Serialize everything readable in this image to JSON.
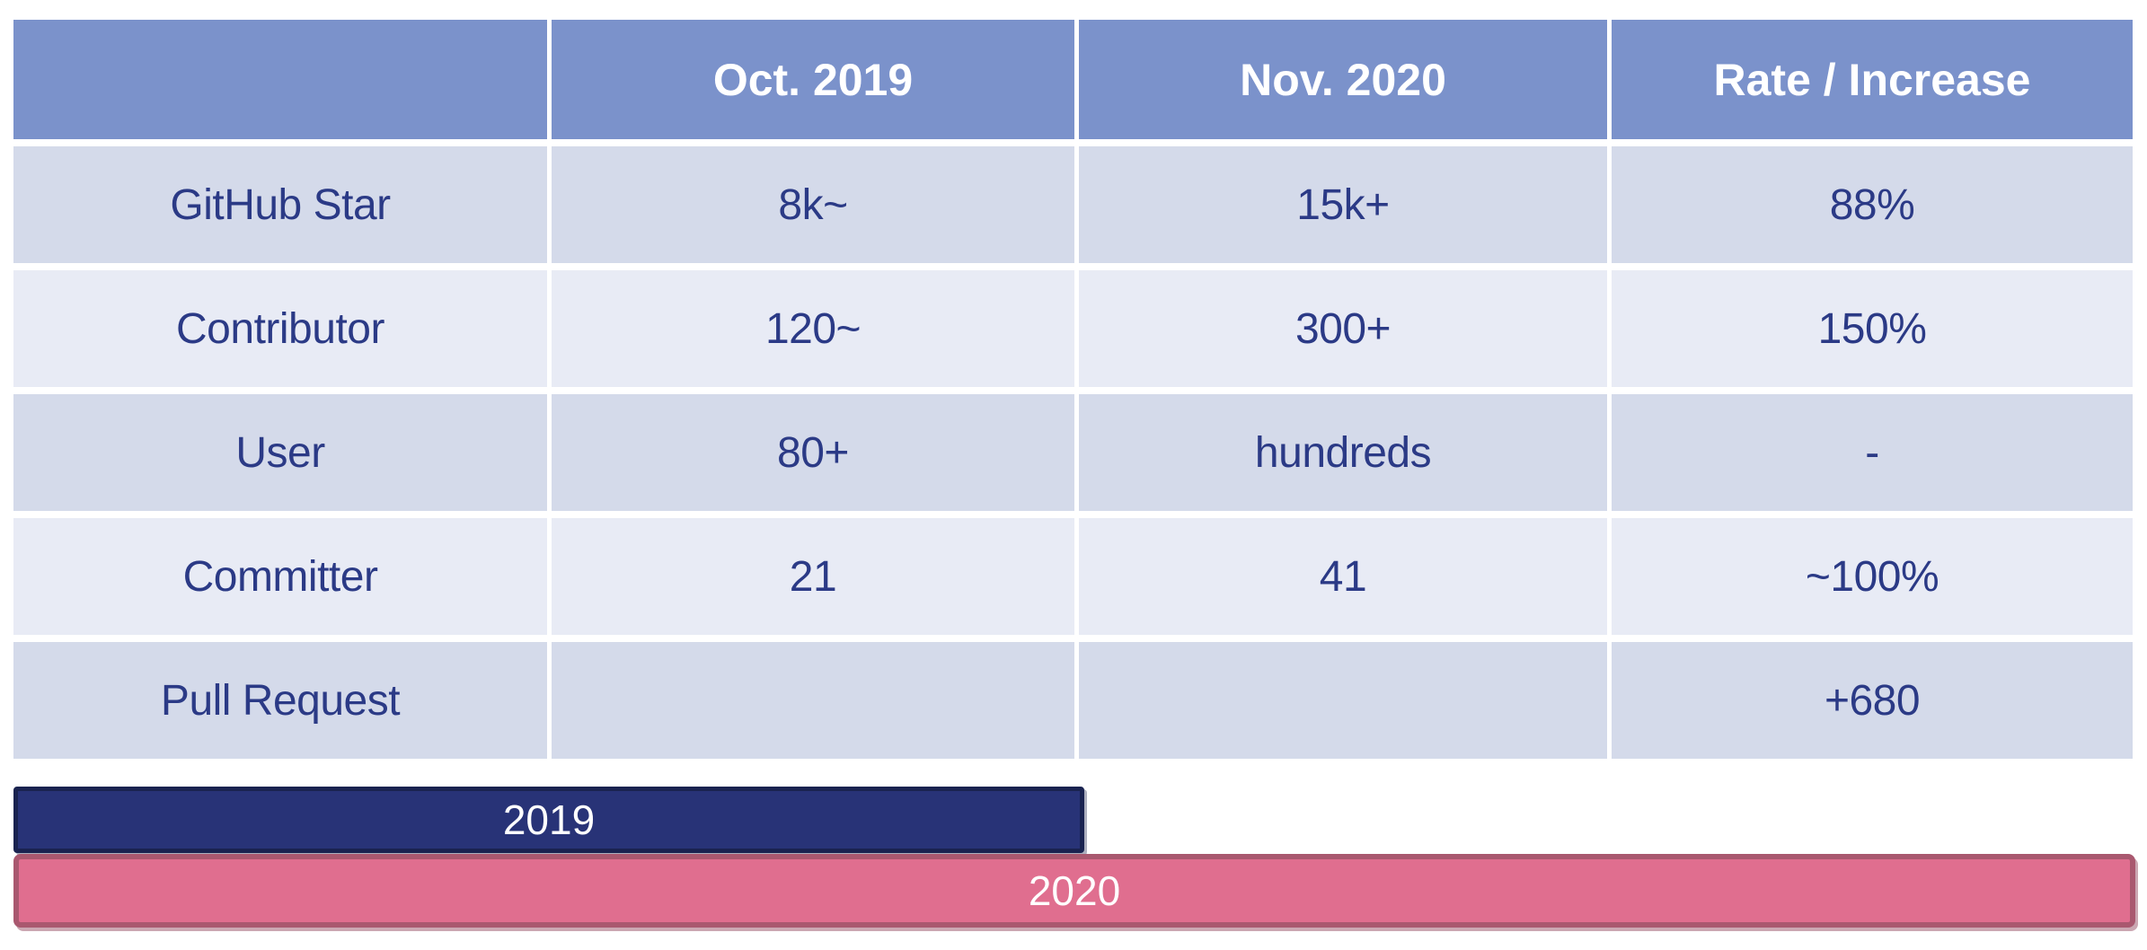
{
  "colors": {
    "header_bg": "#7B92CB",
    "header_text": "#FFFFFF",
    "row_odd_bg": "#D4DAEA",
    "row_even_bg": "#E8EBF5",
    "cell_text": "#2B3A86",
    "bar_2019_fill": "#283377",
    "bar_2019_border": "#1A2350",
    "bar_2020_fill": "#E06E8F",
    "bar_2020_border": "#A9586F",
    "bar_label_text": "#FFFFFF"
  },
  "chart_data": [
    {
      "type": "table",
      "columns": [
        "",
        "Oct. 2019",
        "Nov. 2020",
        "Rate / Increase"
      ],
      "rows": [
        [
          "GitHub Star",
          "8k~",
          "15k+",
          "88%"
        ],
        [
          "Contributor",
          "120~",
          "300+",
          "150%"
        ],
        [
          "User",
          "80+",
          "hundreds",
          "-"
        ],
        [
          "Committer",
          "21",
          "41",
          "~100%"
        ],
        [
          "Pull Request",
          "",
          "",
          "+680"
        ]
      ],
      "layout": "header row blue, alternating lavender data rows, all text centered"
    },
    {
      "type": "bar",
      "orientation": "horizontal",
      "categories": [
        "2019",
        "2020"
      ],
      "values_fraction_of_full_width": [
        0.505,
        1.0
      ],
      "bar_labels": [
        "2019",
        "2020"
      ],
      "colors": [
        "#283377",
        "#E06E8F"
      ],
      "legend": "none",
      "axes": "none"
    }
  ]
}
